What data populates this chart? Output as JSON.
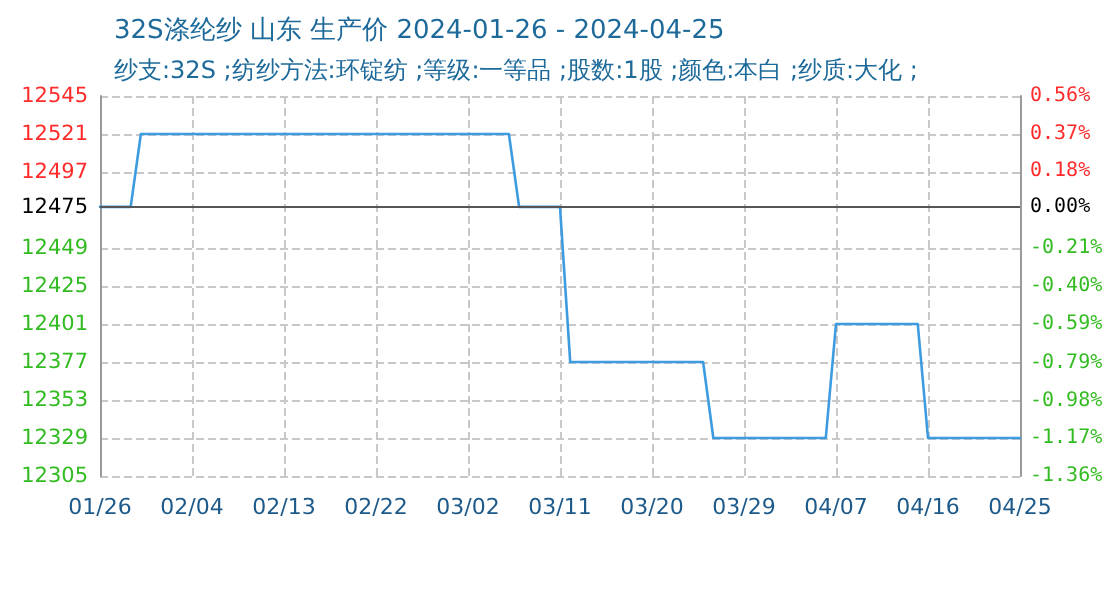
{
  "chart_data": {
    "type": "line",
    "title": "32S涤纶纱 山东 生产价 2024-01-26 - 2024-04-25",
    "subtitle": "纱支:32S ;纺纱方法:环锭纺 ;等级:一等品 ;股数:1股 ;颜色:本白 ;纱质:大化 ;",
    "x": [
      "2024-01-26",
      "2024-01-29",
      "2024-01-30",
      "2024-03-06",
      "2024-03-07",
      "2024-03-11",
      "2024-03-12",
      "2024-03-25",
      "2024-03-26",
      "2024-04-06",
      "2024-04-07",
      "2024-04-15",
      "2024-04-16",
      "2024-04-25"
    ],
    "series": [
      {
        "color": "#3d9be0",
        "values": [
          12475,
          12475,
          12521,
          12521,
          12475,
          12475,
          12377,
          12377,
          12329,
          12329,
          12401,
          12401,
          12329,
          12329
        ]
      }
    ],
    "xlim": [
      "2024-01-26",
      "2024-04-25"
    ],
    "xticks": [
      {
        "value": "2024-01-26",
        "label": "01/26"
      },
      {
        "value": "2024-02-04",
        "label": "02/04"
      },
      {
        "value": "2024-02-13",
        "label": "02/13"
      },
      {
        "value": "2024-02-22",
        "label": "02/22"
      },
      {
        "value": "2024-03-02",
        "label": "03/02"
      },
      {
        "value": "2024-03-11",
        "label": "03/11"
      },
      {
        "value": "2024-03-20",
        "label": "03/20"
      },
      {
        "value": "2024-03-29",
        "label": "03/29"
      },
      {
        "value": "2024-04-07",
        "label": "04/07"
      },
      {
        "value": "2024-04-16",
        "label": "04/16"
      },
      {
        "value": "2024-04-25",
        "label": "04/25"
      }
    ],
    "ylim": [
      12305,
      12545
    ],
    "yticks": [
      12305,
      12329,
      12353,
      12377,
      12401,
      12425,
      12449,
      12475,
      12497,
      12521,
      12545
    ],
    "y2lim": [
      -1.36,
      0.56
    ],
    "y2ticks": [
      {
        "value": -1.36,
        "label": "-1.36%"
      },
      {
        "value": -1.17,
        "label": "-1.17%"
      },
      {
        "value": -0.98,
        "label": "-0.98%"
      },
      {
        "value": -0.79,
        "label": "-0.79%"
      },
      {
        "value": -0.59,
        "label": "-0.59%"
      },
      {
        "value": -0.4,
        "label": "-0.40%"
      },
      {
        "value": -0.21,
        "label": "-0.21%"
      },
      {
        "value": 0,
        "label": "0.00%"
      },
      {
        "value": 0.18,
        "label": "0.18%"
      },
      {
        "value": 0.37,
        "label": "0.37%"
      },
      {
        "value": 0.56,
        "label": "0.56%"
      }
    ],
    "ref_lines": [
      {
        "axis": "y",
        "value": 12475,
        "color": "#555555"
      }
    ],
    "grid": true,
    "marker": "none",
    "line_style": "solid"
  }
}
